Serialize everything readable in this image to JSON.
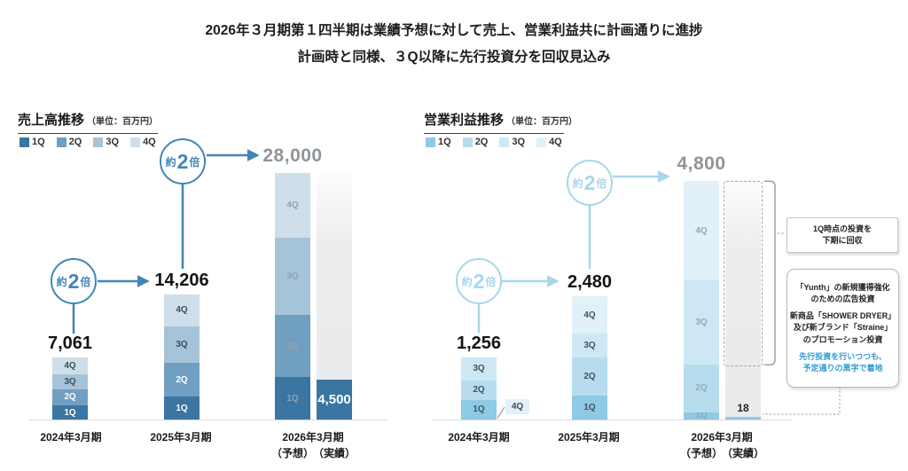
{
  "header": {
    "line1": "2026年３月期第１四半期は業績予想に対して売上、営業利益共に計画通りに進捗",
    "line2": "計画時と同様、３Q以降に先行投資分を回収見込み"
  },
  "chart_data": [
    {
      "id": "revenue",
      "type": "bar",
      "stacked": true,
      "title": "売上高推移",
      "unit_label": "（単位：百万円）",
      "unit": "百万円",
      "legend": [
        "1Q",
        "2Q",
        "3Q",
        "4Q"
      ],
      "legend_position": "top-left",
      "series_colors": [
        "#3b75a2",
        "#719fc1",
        "#a6c4d9",
        "#cfdfea"
      ],
      "accent_color": "#4186b4",
      "ylim": [
        0,
        28500
      ],
      "grid": false,
      "x_labels": [
        "2024年3月期",
        "2025年3月期",
        "2026年3月期"
      ],
      "x_sub_labels": [
        "（予想）",
        "（実績）"
      ],
      "bars": [
        {
          "label": "2024年3月期",
          "kind": "stacked",
          "total": 7061,
          "total_label": "7,061",
          "segments": [
            1600,
            1861,
            1700,
            1900
          ]
        },
        {
          "label": "2025年3月期",
          "kind": "stacked",
          "total": 14206,
          "total_label": "14,206",
          "segments": [
            2606,
            3800,
            4200,
            3600
          ]
        },
        {
          "label": "2026年3月期（予想）",
          "kind": "stacked",
          "muted_labels": true,
          "total": 28000,
          "total_label": "28,000",
          "segments": [
            4800,
            7100,
            8700,
            7400
          ]
        },
        {
          "label": "2026年3月期（実績）",
          "kind": "actual",
          "value": 4500,
          "value_label": "4,500",
          "ghost_to": 28000
        }
      ],
      "multiplier_notes": [
        {
          "text": [
            "約",
            "2",
            "倍"
          ],
          "between": [
            "7,061",
            "14,206"
          ]
        },
        {
          "text": [
            "約",
            "2",
            "倍"
          ],
          "between": [
            "14,206",
            "28,000"
          ]
        }
      ]
    },
    {
      "id": "operating-profit",
      "type": "bar",
      "stacked": true,
      "title": "営業利益推移",
      "unit_label": "（単位：百万円）",
      "unit": "百万円",
      "legend": [
        "1Q",
        "2Q",
        "3Q",
        "4Q"
      ],
      "legend_position": "top-left",
      "series_colors": [
        "#8ecae5",
        "#b7dcee",
        "#cde8f4",
        "#e2f1f9"
      ],
      "accent_color": "#a8d6ea",
      "ylim": [
        0,
        4900
      ],
      "grid": false,
      "x_labels": [
        "2024年3月期",
        "2025年3月期",
        "2026年3月期"
      ],
      "x_sub_labels": [
        "（予想）",
        "（実績）"
      ],
      "bars": [
        {
          "label": "2024年3月期",
          "kind": "stacked",
          "total": 1256,
          "total_label": "1,256",
          "segments": [
            400,
            380,
            476,
            0
          ],
          "callout_4q": "4Q"
        },
        {
          "label": "2025年3月期",
          "kind": "stacked",
          "total": 2480,
          "total_label": "2,480",
          "segments": [
            490,
            760,
            480,
            750
          ]
        },
        {
          "label": "2026年3月期（予想）",
          "kind": "stacked",
          "muted_labels": true,
          "total": 4800,
          "total_label": "4,800",
          "segments": [
            150,
            950,
            1700,
            2000
          ]
        },
        {
          "label": "2026年3月期（実績）",
          "kind": "actual",
          "value": 18,
          "value_label": "18",
          "ghost_to": 4800,
          "dashed_highlight": true
        }
      ],
      "multiplier_notes": [
        {
          "text": [
            "約",
            "2",
            "倍"
          ],
          "between": [
            "1,256",
            "2,480"
          ]
        },
        {
          "text": [
            "約",
            "2",
            "倍"
          ],
          "between": [
            "2,480",
            "4,800"
          ]
        }
      ],
      "annotations": {
        "box1_line1": "1Q時点の投資を",
        "box1_line2": "下期に回収",
        "box2_para1_line1": "「Yunth」の新規獲得強化",
        "box2_para1_line2": "のための広告投資",
        "box2_para2_line1": "新商品「SHOWER DRYER」",
        "box2_para2_line2": "及び新ブランド「Straine」",
        "box2_para2_line3": "のプロモーション投資",
        "box2_highlight_line1": "先行投資を行いつつも、",
        "box2_highlight_line2": "予定通りの黒字で着地",
        "highlight_color": "#2f9cd4"
      }
    }
  ]
}
